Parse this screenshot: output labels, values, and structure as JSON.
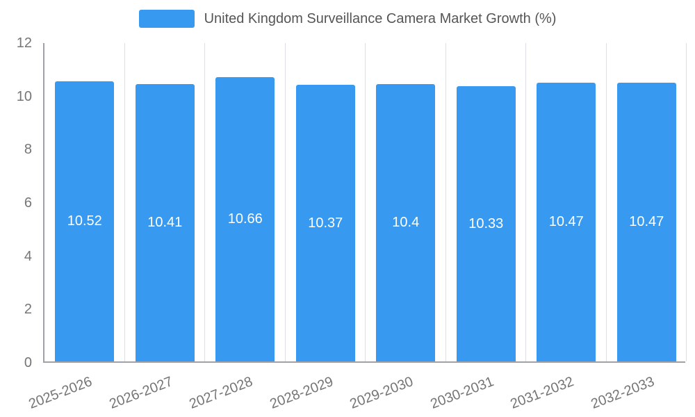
{
  "legend": {
    "label": "United Kingdom Surveillance Camera Market Growth (%)"
  },
  "chart_data": {
    "type": "bar",
    "title": "United Kingdom Surveillance Camera Market Growth (%)",
    "categories": [
      "2025-2026",
      "2026-2027",
      "2027-2028",
      "2028-2029",
      "2029-2030",
      "2030-2031",
      "2031-2032",
      "2032-2033"
    ],
    "values": [
      10.52,
      10.41,
      10.66,
      10.37,
      10.4,
      10.33,
      10.47,
      10.47
    ],
    "value_labels": [
      "10.52",
      "10.41",
      "10.66",
      "10.37",
      "10.4",
      "10.33",
      "10.47",
      "10.47"
    ],
    "xlabel": "",
    "ylabel": "",
    "ylim": [
      0,
      12
    ],
    "yticks": [
      0,
      2,
      4,
      6,
      8,
      10,
      12
    ],
    "grid": "vertical-only",
    "legend_position": "top",
    "bar_color": "#3899f0",
    "value_label_color": "#ffffff",
    "axis_text_color": "#757575",
    "title_color": "#555555"
  }
}
